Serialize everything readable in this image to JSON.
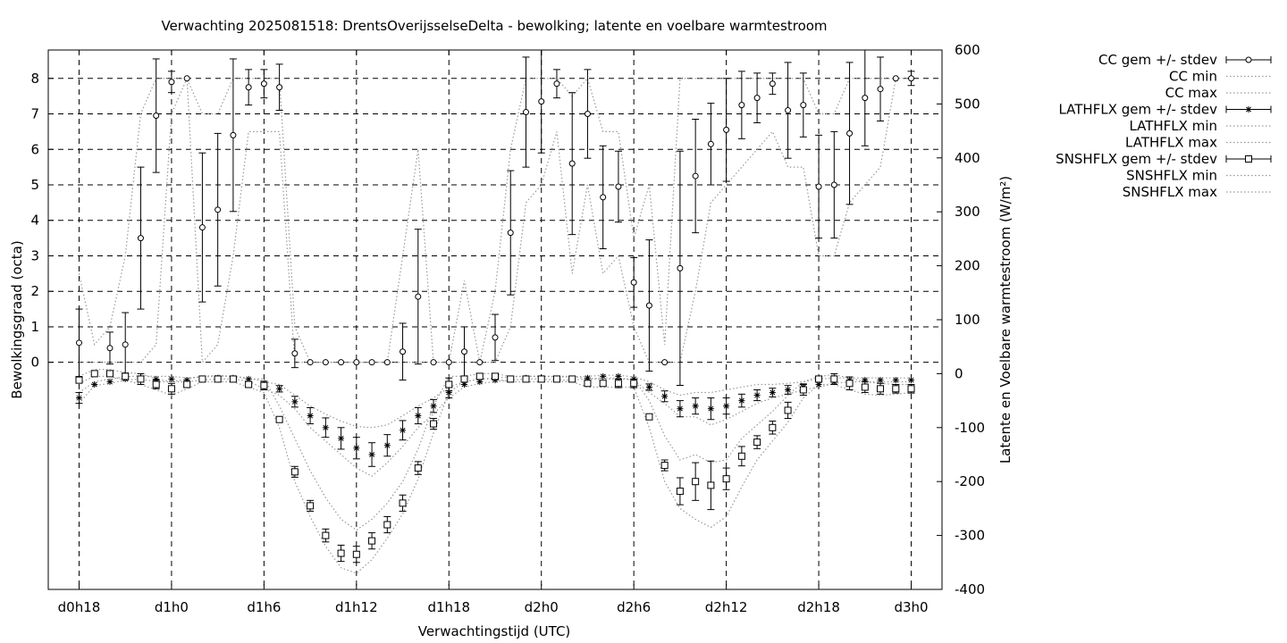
{
  "chart_data": {
    "type": "line",
    "title": "Verwachting 2025081518: DrentsOverijsselseDelta - bewolking; latente en voelbare warmtestroom",
    "xlabel": "Verwachtingstijd (UTC)",
    "ylabel": "Bewolkingsgraad (octa)",
    "y2label": "Latente en Voelbare warmtestroom (W/m²)",
    "x_ticks": [
      {
        "hour": 0,
        "label": "d0h18"
      },
      {
        "hour": 6,
        "label": "d1h0"
      },
      {
        "hour": 12,
        "label": "d1h6"
      },
      {
        "hour": 18,
        "label": "d1h12"
      },
      {
        "hour": 24,
        "label": "d1h18"
      },
      {
        "hour": 30,
        "label": "d2h0"
      },
      {
        "hour": 36,
        "label": "d2h6"
      },
      {
        "hour": 42,
        "label": "d2h12"
      },
      {
        "hour": 48,
        "label": "d2h18"
      },
      {
        "hour": 54,
        "label": "d3h0"
      }
    ],
    "xlim": [
      -2,
      56
    ],
    "ylim": [
      -6.4,
      8.8
    ],
    "y_ticks": [
      0,
      1,
      2,
      3,
      4,
      5,
      6,
      7,
      8
    ],
    "y2lim": [
      -400,
      600
    ],
    "y2_ticks": [
      -400,
      -300,
      -200,
      -100,
      0,
      100,
      200,
      300,
      400,
      500,
      600
    ],
    "grid": true,
    "legend_position": "outside top-right",
    "x": [
      0,
      1,
      2,
      3,
      4,
      5,
      6,
      7,
      8,
      9,
      10,
      11,
      12,
      13,
      14,
      15,
      16,
      17,
      18,
      19,
      20,
      21,
      22,
      23,
      24,
      25,
      26,
      27,
      28,
      29,
      30,
      31,
      32,
      33,
      34,
      35,
      36,
      37,
      38,
      39,
      40,
      41,
      42,
      43,
      44,
      45,
      46,
      47,
      48,
      49,
      50,
      51,
      52,
      53,
      54
    ],
    "series": [
      {
        "name": "CC gem +/- stdev",
        "axis": "y1",
        "marker": "circle",
        "mean": [
          0.55,
          null,
          0.4,
          0.5,
          3.5,
          6.95,
          7.9,
          8.0,
          3.8,
          4.3,
          6.4,
          7.75,
          7.85,
          7.75,
          0.25,
          0.0,
          0.0,
          0.0,
          0.0,
          0.0,
          0.0,
          0.3,
          1.85,
          0.0,
          0.0,
          0.3,
          0.0,
          0.7,
          3.65,
          7.05,
          7.35,
          7.85,
          5.6,
          7.0,
          4.65,
          4.95,
          2.25,
          1.6,
          0.0,
          2.65,
          5.25,
          6.15,
          6.55,
          7.25,
          7.45,
          7.85,
          7.1,
          7.25,
          4.95,
          5.0,
          6.45,
          7.45,
          7.7,
          8.0,
          8.0
        ],
        "stdev": [
          0.95,
          null,
          0.45,
          0.9,
          2.0,
          1.6,
          0.3,
          0.0,
          2.1,
          2.15,
          2.15,
          0.5,
          0.4,
          0.65,
          0.4,
          0.0,
          0.0,
          0.0,
          0.0,
          0.0,
          0.0,
          0.8,
          1.9,
          0.0,
          0.0,
          0.7,
          0.0,
          0.65,
          1.75,
          1.55,
          1.45,
          0.4,
          2.0,
          1.25,
          1.45,
          1.0,
          0.7,
          1.85,
          0.0,
          3.3,
          1.6,
          1.15,
          1.45,
          0.95,
          0.7,
          0.3,
          1.35,
          0.9,
          1.45,
          1.5,
          2.0,
          1.35,
          0.9,
          0.0,
          0.2
        ]
      },
      {
        "name": "CC min",
        "axis": "y1",
        "style": "dotted",
        "values": [
          0.0,
          0.0,
          0.0,
          0.0,
          0.0,
          0.5,
          7.0,
          8.0,
          0.0,
          0.5,
          3.0,
          6.5,
          6.5,
          6.5,
          0.0,
          0.0,
          0.0,
          0.0,
          0.0,
          0.0,
          0.0,
          0.0,
          0.0,
          0.0,
          0.0,
          0.0,
          0.0,
          0.0,
          1.0,
          4.5,
          5.0,
          6.5,
          2.5,
          5.0,
          2.5,
          3.0,
          1.0,
          0.0,
          0.0,
          0.0,
          2.0,
          4.5,
          5.0,
          5.5,
          6.0,
          6.5,
          5.5,
          5.5,
          3.0,
          3.0,
          4.5,
          5.0,
          5.5,
          8.0,
          8.0
        ]
      },
      {
        "name": "CC max",
        "axis": "y1",
        "style": "dotted",
        "values": [
          2.5,
          0.5,
          1.0,
          3.0,
          7.0,
          8.0,
          8.0,
          8.0,
          7.0,
          7.0,
          8.0,
          8.0,
          8.0,
          8.0,
          1.0,
          0.0,
          0.0,
          0.0,
          0.0,
          0.0,
          0.0,
          3.0,
          6.0,
          0.0,
          0.0,
          2.3,
          0.0,
          2.0,
          6.0,
          8.0,
          8.0,
          8.0,
          7.5,
          8.0,
          6.5,
          6.5,
          3.5,
          5.0,
          0.5,
          8.0,
          8.0,
          8.0,
          8.0,
          8.0,
          8.0,
          8.0,
          8.0,
          8.0,
          7.0,
          7.0,
          8.0,
          8.0,
          8.0,
          8.0,
          8.0
        ]
      },
      {
        "name": "LATHFLX gem +/- stdev",
        "axis": "y2",
        "marker": "asterisk",
        "mean": [
          -45,
          -20,
          -15,
          -10,
          -8,
          -10,
          -10,
          -12,
          -10,
          -8,
          -8,
          -10,
          -20,
          -28,
          -52,
          -78,
          -100,
          -120,
          -138,
          -150,
          -133,
          -105,
          -78,
          -60,
          -35,
          -20,
          -15,
          -12,
          -10,
          -8,
          -8,
          -10,
          -10,
          -8,
          -5,
          -5,
          -10,
          -25,
          -42,
          -65,
          -60,
          -65,
          -60,
          -50,
          -40,
          -35,
          -30,
          -25,
          -20,
          -15,
          -12,
          -12,
          -12,
          -12,
          -12
        ],
        "stdev": [
          10,
          0,
          0,
          0,
          0,
          0,
          0,
          0,
          0,
          0,
          0,
          0,
          0,
          6,
          10,
          15,
          18,
          20,
          20,
          22,
          20,
          18,
          15,
          12,
          10,
          0,
          0,
          0,
          0,
          0,
          0,
          0,
          0,
          0,
          0,
          0,
          0,
          6,
          10,
          15,
          15,
          20,
          15,
          12,
          10,
          8,
          8,
          6,
          0,
          0,
          0,
          0,
          0,
          0,
          0
        ]
      },
      {
        "name": "LATHFLX min",
        "axis": "y2",
        "style": "dotted",
        "values": [
          -55,
          -22,
          -18,
          -12,
          -10,
          -15,
          -15,
          -15,
          -12,
          -10,
          -10,
          -14,
          -28,
          -40,
          -65,
          -100,
          -125,
          -150,
          -175,
          -190,
          -165,
          -135,
          -100,
          -75,
          -45,
          -25,
          -18,
          -15,
          -12,
          -10,
          -10,
          -12,
          -12,
          -10,
          -8,
          -8,
          -12,
          -35,
          -55,
          -80,
          -80,
          -95,
          -85,
          -70,
          -55,
          -45,
          -38,
          -30,
          -25,
          -18,
          -15,
          -15,
          -15,
          -15,
          -15
        ]
      },
      {
        "name": "LATHFLX max",
        "axis": "y2",
        "style": "dotted",
        "values": [
          -35,
          -15,
          -10,
          -6,
          -4,
          -5,
          -5,
          -8,
          -6,
          -5,
          -5,
          -8,
          -15,
          -20,
          -40,
          -60,
          -75,
          -88,
          -98,
          -100,
          -95,
          -78,
          -60,
          -45,
          -25,
          -15,
          -10,
          -8,
          -6,
          -5,
          -5,
          -6,
          -6,
          -5,
          -3,
          -3,
          -6,
          -15,
          -30,
          -40,
          -35,
          -35,
          -30,
          -25,
          -20,
          -20,
          -18,
          -15,
          -10,
          -8,
          -8,
          -8,
          -8,
          -8,
          -8
        ]
      },
      {
        "name": "SNSHFLX gem +/- stdev",
        "axis": "y2",
        "marker": "square",
        "mean": [
          -12,
          0,
          0,
          -5,
          -10,
          -20,
          -28,
          -20,
          -10,
          -10,
          -10,
          -20,
          -22,
          -85,
          -182,
          -245,
          -300,
          -333,
          -335,
          -310,
          -280,
          -240,
          -175,
          -93,
          -20,
          -10,
          -5,
          -5,
          -10,
          -10,
          -10,
          -10,
          -10,
          -18,
          -18,
          -18,
          -18,
          -80,
          -170,
          -218,
          -200,
          -207,
          -195,
          -153,
          -127,
          -100,
          -68,
          -30,
          -10,
          -10,
          -18,
          -25,
          -28,
          -28,
          -28
        ],
        "stdev": [
          5,
          0,
          5,
          6,
          10,
          8,
          10,
          5,
          5,
          5,
          5,
          5,
          8,
          5,
          10,
          10,
          12,
          15,
          15,
          15,
          15,
          15,
          12,
          10,
          12,
          5,
          5,
          5,
          5,
          5,
          5,
          5,
          5,
          5,
          5,
          8,
          8,
          5,
          10,
          25,
          35,
          45,
          20,
          18,
          12,
          12,
          15,
          10,
          5,
          10,
          12,
          10,
          10,
          8,
          8
        ]
      },
      {
        "name": "SNSHFLX min",
        "axis": "y2",
        "style": "dotted",
        "values": [
          -18,
          -5,
          -5,
          -12,
          -20,
          -30,
          -40,
          -28,
          -15,
          -15,
          -15,
          -25,
          -35,
          -100,
          -200,
          -265,
          -320,
          -360,
          -370,
          -345,
          -305,
          -260,
          -195,
          -110,
          -35,
          -15,
          -10,
          -10,
          -15,
          -15,
          -15,
          -15,
          -15,
          -25,
          -25,
          -25,
          -25,
          -100,
          -200,
          -250,
          -270,
          -285,
          -265,
          -210,
          -160,
          -125,
          -90,
          -45,
          -20,
          -20,
          -30,
          -38,
          -40,
          -38,
          -35
        ]
      },
      {
        "name": "SNSHFLX max",
        "axis": "y2",
        "style": "dotted",
        "values": [
          -5,
          8,
          8,
          2,
          0,
          -10,
          -15,
          -10,
          -5,
          -3,
          -5,
          -10,
          -10,
          -60,
          -120,
          -180,
          -230,
          -270,
          -290,
          -270,
          -240,
          -200,
          -140,
          -60,
          -5,
          -5,
          0,
          0,
          -5,
          -5,
          -5,
          -5,
          -5,
          -10,
          -10,
          -10,
          -10,
          -50,
          -115,
          -160,
          -150,
          -165,
          -160,
          -120,
          -95,
          -70,
          -40,
          -15,
          -5,
          -2,
          -8,
          -15,
          -18,
          -20,
          -20
        ]
      }
    ]
  }
}
